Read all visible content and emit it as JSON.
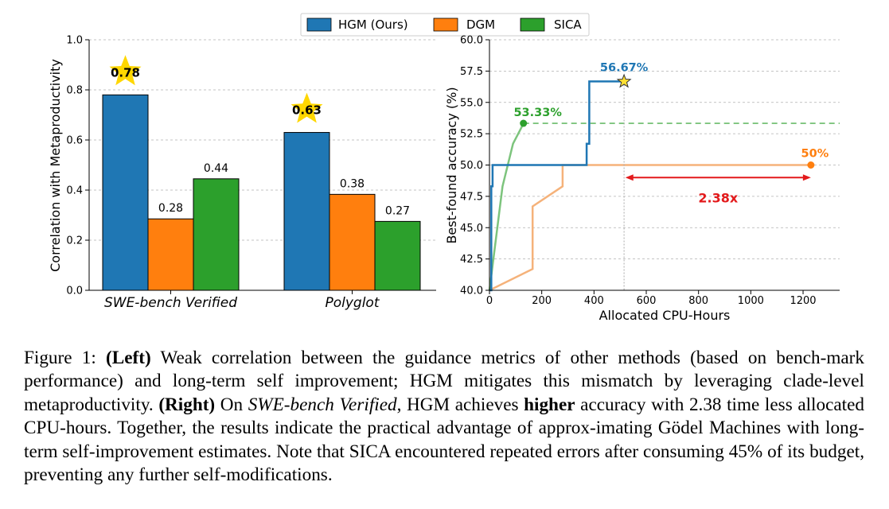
{
  "legend": [
    {
      "name": "HGM (Ours)",
      "color": "#1f77b4"
    },
    {
      "name": "DGM",
      "color": "#ff7f0e"
    },
    {
      "name": "SICA",
      "color": "#2ca02c"
    }
  ],
  "colors": {
    "hgm": "#1f77b4",
    "dgm": "#ff7f0e",
    "sica": "#2ca02c",
    "star": "#ffd700",
    "arrow": "#e31a1c"
  },
  "chart_data": [
    {
      "type": "bar",
      "ylabel": "Correlation with Metaproductivity",
      "xlabel": "",
      "ylim": [
        0,
        1.0
      ],
      "yticks": [
        "0.0",
        "0.2",
        "0.4",
        "0.6",
        "0.8",
        "1.0"
      ],
      "grid": "y dashed",
      "categories": [
        "SWE-bench Verified",
        "Polyglot"
      ],
      "series": [
        {
          "name": "HGM (Ours)",
          "values": [
            0.78,
            0.63
          ],
          "labels": [
            "0.78",
            "0.63"
          ],
          "highlight_star": true
        },
        {
          "name": "DGM",
          "values": [
            0.285,
            0.383
          ],
          "labels": [
            "0.28",
            "0.38"
          ]
        },
        {
          "name": "SICA",
          "values": [
            0.445,
            0.275
          ],
          "labels": [
            "0.44",
            "0.27"
          ]
        }
      ]
    },
    {
      "type": "line",
      "xlabel": "Allocated CPU-Hours",
      "ylabel": "Best-found accuracy (%)",
      "xlim": [
        0,
        1340
      ],
      "ylim": [
        40.0,
        60.0
      ],
      "xticks": [
        "0",
        "200",
        "400",
        "600",
        "800",
        "1000",
        "1200"
      ],
      "yticks": [
        "40.0",
        "42.5",
        "45.0",
        "47.5",
        "50.0",
        "52.5",
        "55.0",
        "57.5",
        "60.0"
      ],
      "grid": "y dashed",
      "series": [
        {
          "name": "HGM (Ours)",
          "step": true,
          "x": [
            0,
            7,
            7,
            12,
            12,
            372,
            372,
            382,
            382,
            515
          ],
          "y": [
            40.0,
            40.0,
            48.3,
            48.3,
            50.0,
            50.0,
            51.7,
            51.7,
            56.67,
            56.67
          ],
          "end_label": "56.67%",
          "end_marker": "star"
        },
        {
          "name": "DGM",
          "step": false,
          "x": [
            0,
            165,
            165,
            280,
            280,
            1230
          ],
          "y": [
            40.0,
            41.7,
            46.7,
            48.3,
            50.0,
            50.0
          ],
          "end_label": "50%",
          "end_marker": "dot"
        },
        {
          "name": "SICA",
          "step": false,
          "x": [
            0,
            50,
            90,
            120,
            130
          ],
          "y": [
            40.0,
            48.3,
            51.7,
            52.9,
            53.33
          ],
          "end_label": "53.33%",
          "end_marker": "dot",
          "extension_dashed_to": 1340
        }
      ],
      "annotation": {
        "text": "2.38x",
        "from_x": 520,
        "to_x": 1230,
        "y": 49.0
      }
    }
  ],
  "caption": {
    "prefix": "Figure 1: ",
    "left_bold": "(Left)",
    "text1": " Weak correlation between the guidance metrics of other methods (based on bench-mark performance) and long-term self improvement; HGM mitigates this mismatch by leveraging clade-level metaproductivity. ",
    "right_bold": "(Right)",
    "text2": " On ",
    "italic": "SWE-bench Verified",
    "text3": ", HGM achieves ",
    "higher_bold": "higher",
    "text4": " accuracy with 2.38 time less allocated CPU-hours. Together, the results indicate the practical advantage of approx-imating Gödel Machines with long-term self-improvement estimates. Note that SICA encountered repeated errors after consuming 45% of its budget, preventing any further self-modifications."
  }
}
